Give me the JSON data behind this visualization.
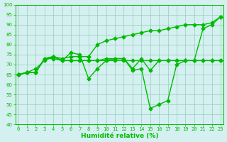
{
  "title": "",
  "xlabel": "Humidité relative (%)",
  "ylabel": "",
  "bg_color": "#d4f0f0",
  "grid_color": "#99ccbb",
  "line_color": "#00bb00",
  "marker": "D",
  "markersize": 2.5,
  "linewidth": 1.0,
  "ylim": [
    40,
    100
  ],
  "yticks": [
    40,
    45,
    50,
    55,
    60,
    65,
    70,
    75,
    80,
    85,
    90,
    95,
    100
  ],
  "xlim": [
    -0.3,
    23.3
  ],
  "xticks": [
    0,
    1,
    2,
    3,
    4,
    5,
    6,
    7,
    8,
    9,
    10,
    11,
    12,
    13,
    14,
    15,
    16,
    17,
    18,
    19,
    20,
    21,
    22,
    23
  ],
  "series": [
    [
      65,
      66,
      66,
      73,
      73,
      72,
      72,
      72,
      72,
      72,
      72,
      72,
      72,
      72,
      72,
      72,
      72,
      72,
      72,
      72,
      72,
      72,
      72,
      72
    ],
    [
      65,
      66,
      66,
      73,
      74,
      72,
      76,
      75,
      63,
      68,
      72,
      73,
      73,
      68,
      73,
      67,
      72,
      72,
      72,
      72,
      72,
      72,
      72,
      72
    ],
    [
      65,
      66,
      66,
      73,
      74,
      72,
      72,
      72,
      72,
      72,
      73,
      73,
      73,
      67,
      68,
      48,
      50,
      52,
      70,
      72,
      72,
      88,
      90,
      94
    ],
    [
      65,
      66,
      68,
      72,
      74,
      73,
      74,
      74,
      74,
      80,
      82,
      83,
      84,
      85,
      86,
      87,
      87,
      88,
      89,
      90,
      90,
      90,
      91,
      94
    ]
  ]
}
